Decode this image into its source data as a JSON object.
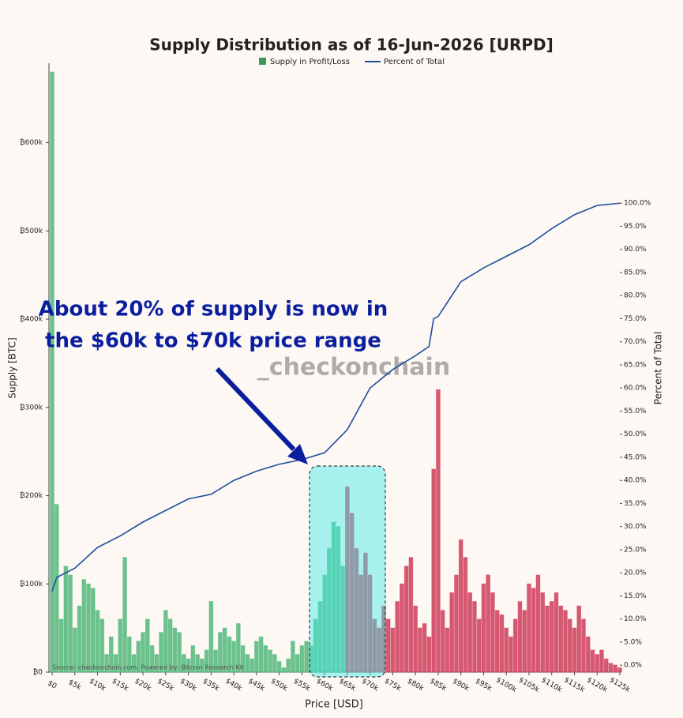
{
  "chart_data": {
    "type": "bar",
    "title": "Supply Distribution as of 16-Jun-2026 [URPD]",
    "x_label": "Price [USD]",
    "y_label": "Supply [BTC]",
    "y2_label": "Percent of Total",
    "annotation": [
      "About 20% of supply is now in",
      "the $60k to $70k price range"
    ],
    "watermark": "_checkonchain",
    "source": "Source: checkonchain.com, Powered by: Bitcoin Research Kit",
    "xlim": [
      -700,
      125000
    ],
    "ylim": [
      0,
      690000
    ],
    "y2lim": [
      -1.5,
      130.3
    ],
    "xticks": [
      {
        "value": 0,
        "label": "$0"
      },
      {
        "value": 5000,
        "label": "$5k"
      },
      {
        "value": 10000,
        "label": "$10k"
      },
      {
        "value": 15000,
        "label": "$15k"
      },
      {
        "value": 20000,
        "label": "$20k"
      },
      {
        "value": 25000,
        "label": "$25k"
      },
      {
        "value": 30000,
        "label": "$30k"
      },
      {
        "value": 35000,
        "label": "$35k"
      },
      {
        "value": 40000,
        "label": "$40k"
      },
      {
        "value": 45000,
        "label": "$45k"
      },
      {
        "value": 50000,
        "label": "$50k"
      },
      {
        "value": 55000,
        "label": "$55k"
      },
      {
        "value": 60000,
        "label": "$60k"
      },
      {
        "value": 65000,
        "label": "$65k"
      },
      {
        "value": 70000,
        "label": "$70k"
      },
      {
        "value": 75000,
        "label": "$75k"
      },
      {
        "value": 80000,
        "label": "$80k"
      },
      {
        "value": 85000,
        "label": "$85k"
      },
      {
        "value": 90000,
        "label": "$90k"
      },
      {
        "value": 95000,
        "label": "$95k"
      },
      {
        "value": 100000,
        "label": "$100k"
      },
      {
        "value": 105000,
        "label": "$105k"
      },
      {
        "value": 110000,
        "label": "$110k"
      },
      {
        "value": 115000,
        "label": "$115k"
      },
      {
        "value": 120000,
        "label": "$120k"
      },
      {
        "value": 125000,
        "label": "$125k"
      }
    ],
    "yticks": [
      {
        "value": 0,
        "label": "₿0"
      },
      {
        "value": 100000,
        "label": "₿100k"
      },
      {
        "value": 200000,
        "label": "₿200k"
      },
      {
        "value": 300000,
        "label": "₿300k"
      },
      {
        "value": 400000,
        "label": "₿400k"
      },
      {
        "value": 500000,
        "label": "₿500k"
      },
      {
        "value": 600000,
        "label": "₿600k"
      }
    ],
    "y2ticks": [
      {
        "value": 0,
        "label": "0.0%"
      },
      {
        "value": 5,
        "label": "5.0%"
      },
      {
        "value": 10,
        "label": "10.0%"
      },
      {
        "value": 15,
        "label": "15.0%"
      },
      {
        "value": 20,
        "label": "20.0%"
      },
      {
        "value": 25,
        "label": "25.0%"
      },
      {
        "value": 30,
        "label": "30.0%"
      },
      {
        "value": 35,
        "label": "35.0%"
      },
      {
        "value": 40,
        "label": "40.0%"
      },
      {
        "value": 45,
        "label": "45.0%"
      },
      {
        "value": 50,
        "label": "50.0%"
      },
      {
        "value": 55,
        "label": "55.0%"
      },
      {
        "value": 60,
        "label": "60.0%"
      },
      {
        "value": 65,
        "label": "65.0%"
      },
      {
        "value": 70,
        "label": "70.0%"
      },
      {
        "value": 75,
        "label": "75.0%"
      },
      {
        "value": 80,
        "label": "80.0%"
      },
      {
        "value": 85,
        "label": "85.0%"
      },
      {
        "value": 90,
        "label": "90.0%"
      },
      {
        "value": 95,
        "label": "95.0%"
      },
      {
        "value": 100,
        "label": "100.0%"
      }
    ],
    "series": [
      {
        "name": "Supply in Profit/Loss",
        "type": "bar",
        "color": "#3a9a5a",
        "x": [
          0,
          1000,
          2000,
          3000,
          4000,
          5000,
          6000,
          7000,
          8000,
          9000,
          10000,
          11000,
          12000,
          13000,
          14000,
          15000,
          16000,
          17000,
          18000,
          19000,
          20000,
          21000,
          22000,
          23000,
          24000,
          25000,
          26000,
          27000,
          28000,
          29000,
          30000,
          31000,
          32000,
          33000,
          34000,
          35000,
          36000,
          37000,
          38000,
          39000,
          40000,
          41000,
          42000,
          43000,
          44000,
          45000,
          46000,
          47000,
          48000,
          49000,
          50000,
          51000,
          52000,
          53000,
          54000,
          55000,
          56000,
          57000,
          58000,
          59000,
          60000,
          61000,
          62000,
          63000,
          64000,
          65000,
          66000,
          67000,
          68000,
          69000,
          70000,
          71000,
          72000,
          73000,
          74000,
          75000,
          76000,
          77000,
          78000,
          79000,
          80000,
          81000,
          82000,
          83000,
          84000,
          85000,
          86000,
          87000,
          88000,
          89000,
          90000,
          91000,
          92000,
          93000,
          94000,
          95000,
          96000,
          97000,
          98000,
          99000,
          100000,
          101000,
          102000,
          103000,
          104000,
          105000,
          106000,
          107000,
          108000,
          109000,
          110000,
          111000,
          112000,
          113000,
          114000,
          115000,
          116000,
          117000,
          118000,
          119000,
          120000,
          121000,
          122000,
          123000,
          124000,
          125000
        ],
        "values": [
          680000,
          190000,
          60000,
          120000,
          110000,
          50000,
          75000,
          105000,
          100000,
          95000,
          70000,
          60000,
          20000,
          40000,
          20000,
          60000,
          130000,
          40000,
          20000,
          35000,
          45000,
          60000,
          30000,
          20000,
          45000,
          70000,
          60000,
          50000,
          45000,
          20000,
          15000,
          30000,
          20000,
          15000,
          25000,
          80000,
          25000,
          45000,
          50000,
          40000,
          35000,
          55000,
          30000,
          20000,
          15000,
          35000,
          40000,
          30000,
          25000,
          20000,
          12000,
          5000,
          15000,
          35000,
          20000,
          30000,
          35000,
          30000,
          60000,
          80000,
          110000,
          140000,
          170000,
          165000,
          120000,
          210000,
          180000,
          140000,
          110000,
          135000,
          110000,
          60000,
          50000,
          75000,
          60000,
          50000,
          80000,
          100000,
          120000,
          130000,
          75000,
          50000,
          55000,
          40000,
          230000,
          320000,
          70000,
          50000,
          90000,
          110000,
          150000,
          130000,
          90000,
          80000,
          60000,
          100000,
          110000,
          90000,
          70000,
          65000,
          50000,
          40000,
          60000,
          80000,
          70000,
          100000,
          95000,
          110000,
          90000,
          75000,
          80000,
          90000,
          75000,
          70000,
          60000,
          50000,
          75000,
          60000,
          40000,
          25000,
          20000,
          25000,
          15000,
          10000,
          8000,
          5000
        ],
        "colors": [
          "#52b87a",
          "#52b87a",
          "#52b87a",
          "#52b87a",
          "#52b87a",
          "#52b87a",
          "#52b87a",
          "#52b87a",
          "#52b87a",
          "#52b87a",
          "#52b87a",
          "#52b87a",
          "#52b87a",
          "#52b87a",
          "#52b87a",
          "#52b87a",
          "#52b87a",
          "#52b87a",
          "#52b87a",
          "#52b87a",
          "#52b87a",
          "#52b87a",
          "#52b87a",
          "#52b87a",
          "#52b87a",
          "#52b87a",
          "#52b87a",
          "#52b87a",
          "#52b87a",
          "#52b87a",
          "#52b87a",
          "#52b87a",
          "#52b87a",
          "#52b87a",
          "#52b87a",
          "#52b87a",
          "#52b87a",
          "#52b87a",
          "#52b87a",
          "#52b87a",
          "#52b87a",
          "#52b87a",
          "#52b87a",
          "#52b87a",
          "#52b87a",
          "#52b87a",
          "#52b87a",
          "#52b87a",
          "#52b87a",
          "#52b87a",
          "#52b87a",
          "#52b87a",
          "#52b87a",
          "#52b87a",
          "#52b87a",
          "#52b87a",
          "#52b87a",
          "#52b87a",
          "#52b87a",
          "#52b87a",
          "#52b87a",
          "#52b87a",
          "#52b87a",
          "#52b87a",
          "#52b87a",
          "#cf3d5a",
          "#cf3d5a",
          "#cf3d5a",
          "#cf3d5a",
          "#cf3d5a",
          "#cf3d5a",
          "#cf3d5a",
          "#cf3d5a",
          "#cf3d5a",
          "#cf3d5a",
          "#cf3d5a",
          "#cf3d5a",
          "#cf3d5a",
          "#cf3d5a",
          "#cf3d5a",
          "#cf3d5a",
          "#cf3d5a",
          "#cf3d5a",
          "#cf3d5a",
          "#cf3d5a",
          "#cf3d5a",
          "#cf3d5a",
          "#cf3d5a",
          "#cf3d5a",
          "#cf3d5a",
          "#cf3d5a",
          "#cf3d5a",
          "#cf3d5a",
          "#cf3d5a",
          "#cf3d5a",
          "#cf3d5a",
          "#cf3d5a",
          "#cf3d5a",
          "#cf3d5a",
          "#cf3d5a",
          "#cf3d5a",
          "#cf3d5a",
          "#cf3d5a",
          "#cf3d5a",
          "#cf3d5a",
          "#cf3d5a",
          "#cf3d5a",
          "#cf3d5a",
          "#cf3d5a",
          "#cf3d5a",
          "#cf3d5a",
          "#cf3d5a",
          "#cf3d5a",
          "#cf3d5a",
          "#cf3d5a",
          "#cf3d5a",
          "#cf3d5a",
          "#cf3d5a",
          "#cf3d5a",
          "#cf3d5a",
          "#cf3d5a",
          "#cf3d5a",
          "#cf3d5a",
          "#cf3d5a",
          "#cf3d5a",
          "#cf3d5a"
        ]
      },
      {
        "name": "Percent of Total",
        "type": "line",
        "axis": "y2",
        "color": "#1f4e9c",
        "x": [
          0,
          1000,
          5000,
          10000,
          15000,
          20000,
          25000,
          30000,
          35000,
          40000,
          45000,
          50000,
          55000,
          60000,
          65000,
          70000,
          75000,
          80000,
          83000,
          84000,
          85000,
          90000,
          95000,
          100000,
          105000,
          110000,
          115000,
          120000,
          125000
        ],
        "values": [
          16,
          19,
          21,
          25.5,
          28,
          31,
          33.5,
          36,
          37,
          40,
          42,
          43.5,
          44.5,
          46,
          51,
          60,
          64,
          67,
          69,
          75,
          75.5,
          83,
          86,
          88.5,
          91,
          94.5,
          97.5,
          99.5,
          100
        ]
      }
    ]
  }
}
